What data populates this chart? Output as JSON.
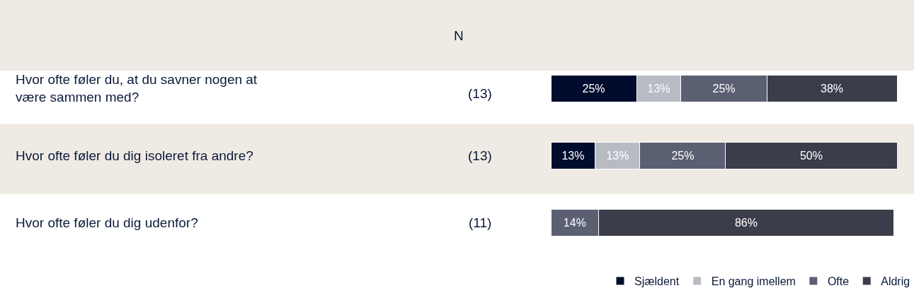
{
  "chart_data": {
    "type": "bar",
    "orientation": "horizontal",
    "stacked": true,
    "categories": [
      "Hvor ofte føler du, at du savner nogen at være sammen med?",
      "Hvor ofte føler du dig isoleret fra andre?",
      "Hvor ofte føler du dig udenfor?"
    ],
    "annotations": [
      "N",
      "(13)",
      "(13)",
      "(11)"
    ],
    "series": [
      {
        "name": "Sjældent",
        "color": "#000c2d",
        "values": [
          25,
          13,
          null
        ],
        "value_labels": [
          "25%",
          "13%",
          null
        ]
      },
      {
        "name": "En gang imellem",
        "color": "#b8bac4",
        "values": [
          13,
          13,
          null
        ],
        "value_labels": [
          "13%",
          "13%",
          null
        ]
      },
      {
        "name": "Ofte",
        "color": "#5a5f72",
        "values": [
          25,
          25,
          14
        ],
        "value_labels": [
          "25%",
          "25%",
          "14%"
        ]
      },
      {
        "name": "Aldrig",
        "color": "#3c3d4a",
        "values": [
          38,
          50,
          86
        ],
        "value_labels": [
          "38%",
          "50%",
          "86%"
        ]
      }
    ],
    "xlim": [
      0,
      101
    ],
    "tick_labels": false,
    "grid": false,
    "legend": "bottom right"
  }
}
